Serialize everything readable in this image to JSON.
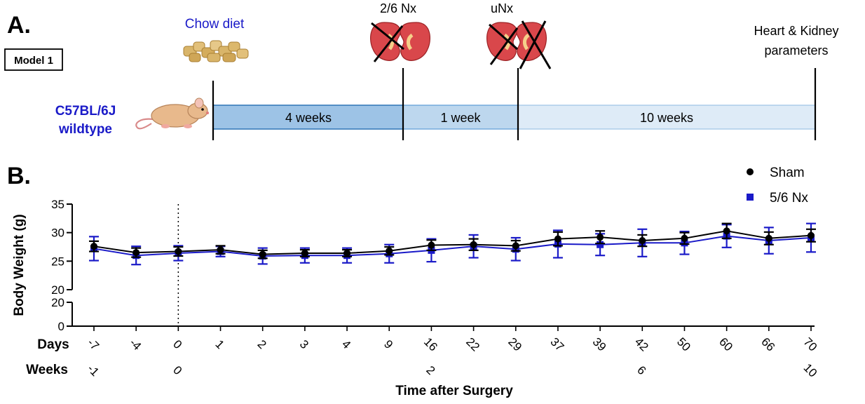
{
  "panel_a": {
    "label": "A.",
    "model_label": "Model 1",
    "diet_label": "Chow diet",
    "strain_line1": "C57BL/6J",
    "strain_line2": "wildtype",
    "surgery1_label": "2/6 Nx",
    "surgery2_label": "uNx",
    "endpoint_line1": "Heart & Kidney",
    "endpoint_line2": "parameters",
    "segments": [
      "4 weeks",
      "1 week",
      "10 weeks"
    ],
    "colors": {
      "accent_text": "#1a1ac8",
      "segment1": "#9dc3e6",
      "segment2": "#bdd7ee",
      "segment3": "#deebf7",
      "kidney": "#d9474b"
    }
  },
  "panel_b": {
    "label": "B."
  },
  "chart_data": {
    "type": "line",
    "ylabel": "Body Weight (g)",
    "xlabel": "Time after Surgery",
    "days_label": "Days",
    "weeks_label": "Weeks",
    "ylim": [
      0,
      35
    ],
    "broken_axis": {
      "lower": [
        0,
        20
      ],
      "upper": [
        20,
        35
      ]
    },
    "y_ticks_upper": [
      20,
      25,
      30,
      35
    ],
    "y_ticks_lower": [
      0,
      20
    ],
    "categories": [
      "-7",
      "-4",
      "0",
      "1",
      "2",
      "3",
      "4",
      "9",
      "16",
      "22",
      "29",
      "37",
      "39",
      "42",
      "50",
      "60",
      "66",
      "70"
    ],
    "weeks_ticks": [
      {
        "category_index": 0,
        "label": "-1"
      },
      {
        "category_index": 2,
        "label": "0"
      },
      {
        "category_index": 8,
        "label": "2"
      },
      {
        "category_index": 13,
        "label": "6"
      },
      {
        "category_index": 17,
        "label": "10"
      }
    ],
    "surgery_marker_category": "0",
    "legend_position": "top-right",
    "series": [
      {
        "name": "Sham",
        "marker": "circle",
        "color": "#000000",
        "values": [
          27.6,
          26.5,
          26.7,
          27.0,
          26.2,
          26.4,
          26.4,
          26.8,
          27.8,
          27.9,
          27.7,
          28.9,
          29.2,
          28.6,
          29.0,
          30.3,
          29.0,
          29.5
        ],
        "errors": [
          0.9,
          0.8,
          0.8,
          0.7,
          0.7,
          0.6,
          0.6,
          0.7,
          0.9,
          1.0,
          0.9,
          1.2,
          1.1,
          1.0,
          1.0,
          1.3,
          1.1,
          1.1
        ]
      },
      {
        "name": "5/6 Nx",
        "marker": "square",
        "color": "#1a1ac8",
        "values": [
          27.2,
          26.0,
          26.4,
          26.7,
          25.9,
          26.0,
          26.0,
          26.3,
          26.9,
          27.6,
          27.1,
          28.0,
          27.9,
          28.2,
          28.2,
          29.4,
          28.6,
          29.1
        ],
        "errors": [
          2.1,
          1.6,
          1.3,
          0.9,
          1.4,
          1.3,
          1.3,
          1.6,
          2.0,
          2.0,
          2.0,
          2.4,
          1.9,
          2.4,
          2.0,
          2.0,
          2.3,
          2.5
        ]
      }
    ]
  }
}
